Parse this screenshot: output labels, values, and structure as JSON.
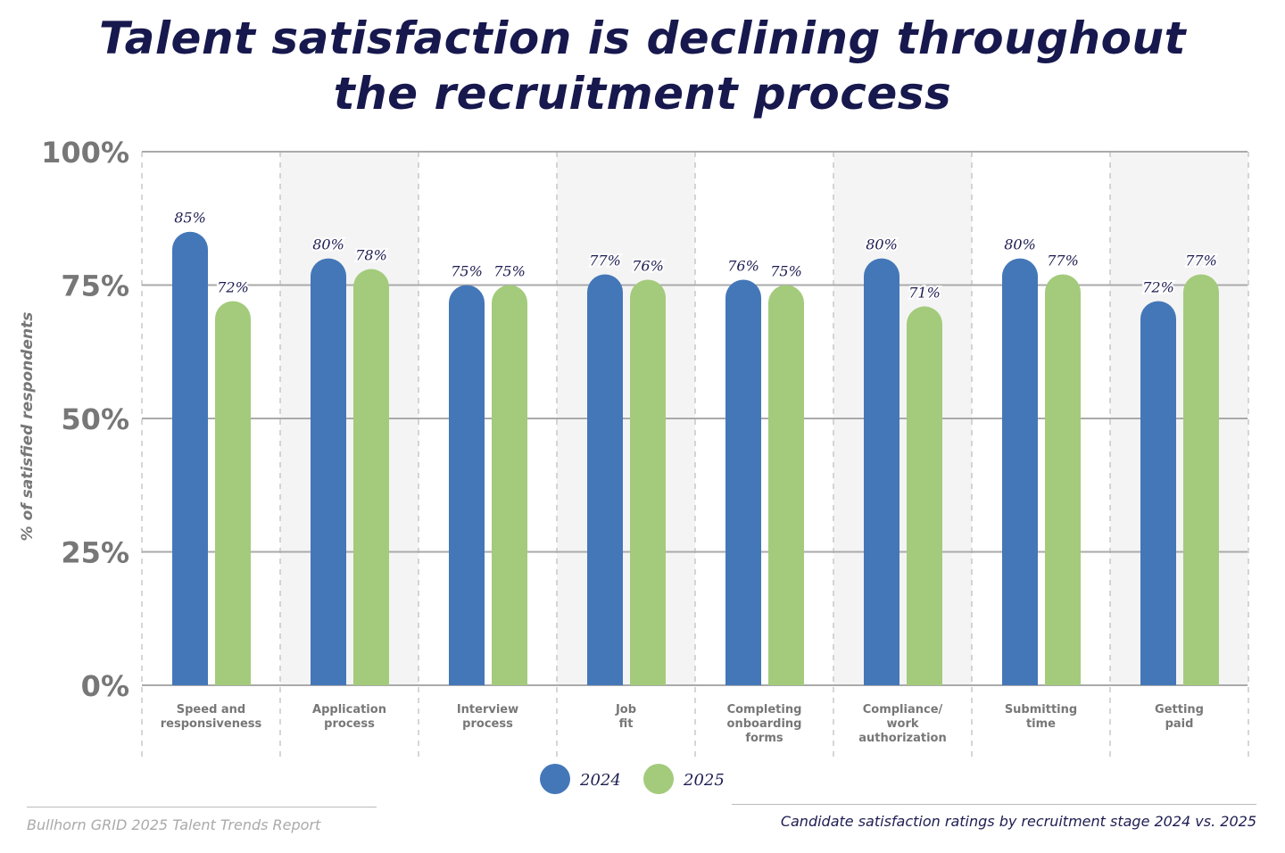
{
  "title_line1": "Talent satisfaction is declining throughout",
  "title_line2": "the recruitment process",
  "footer": {
    "source": "Bullhorn GRID 2025 Talent Trends Report",
    "caption": "Candidate satisfaction ratings by recruitment stage 2024 vs. 2025"
  },
  "chart_data": {
    "type": "bar",
    "title": "Talent satisfaction is declining throughout the recruitment process",
    "ylabel": "% of satisfied respondents",
    "xlabel": "",
    "ylim": [
      0,
      100
    ],
    "yticks": [
      "0%",
      "25%",
      "50%",
      "75%",
      "100%"
    ],
    "grid": true,
    "legend": "bottom-center",
    "categories": [
      [
        "Speed and",
        "responsiveness"
      ],
      [
        "Application",
        "process"
      ],
      [
        "Interview",
        "process"
      ],
      [
        "Job",
        "fit"
      ],
      [
        "Completing",
        "onboarding",
        "forms"
      ],
      [
        "Compliance/",
        "work",
        "authorization"
      ],
      [
        "Submitting",
        "time"
      ],
      [
        "Getting",
        "paid"
      ]
    ],
    "series": [
      {
        "name": "2024",
        "color": "#4477b8",
        "values": [
          85,
          80,
          75,
          77,
          76,
          80,
          80,
          72
        ]
      },
      {
        "name": "2025",
        "color": "#a3cb7b",
        "values": [
          72,
          78,
          75,
          76,
          75,
          71,
          77,
          77
        ]
      }
    ]
  }
}
